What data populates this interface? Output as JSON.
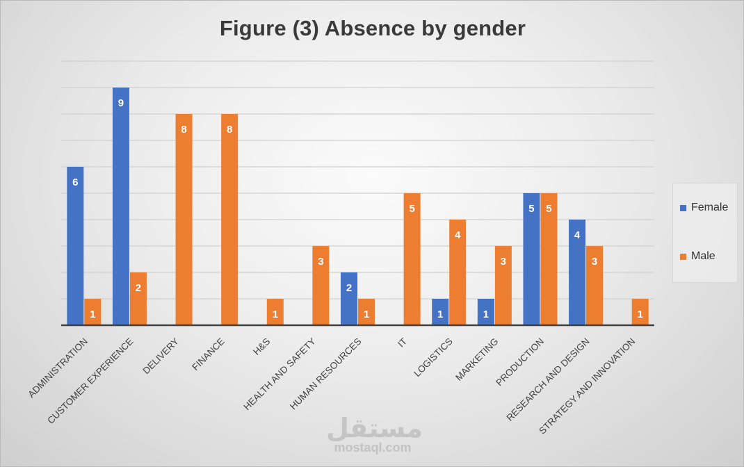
{
  "chart_data": {
    "type": "bar",
    "title": "Figure (3) Absence by gender",
    "xlabel": "",
    "ylabel": "",
    "ylim": [
      0,
      10
    ],
    "grid": true,
    "legend_position": "right",
    "categories": [
      "ADMINISTRATION",
      "CUSTOMER EXPERIENCE",
      "DELIVERY",
      "FINANCE",
      "H&S",
      "HEALTH AND SAFETY",
      "HUMAN RESOURCES",
      "IT",
      "LOGISTICS",
      "MARKETING",
      "PRODUCTION",
      "RESEARCH AND DESIGN",
      "STRATEGY AND INNOVATION"
    ],
    "series": [
      {
        "name": "Female",
        "color": "#4472c4",
        "values": [
          6,
          9,
          null,
          null,
          null,
          null,
          2,
          null,
          1,
          1,
          5,
          4,
          null
        ]
      },
      {
        "name": "Male",
        "color": "#ed7d31",
        "values": [
          1,
          2,
          8,
          8,
          1,
          3,
          1,
          5,
          4,
          3,
          5,
          3,
          1
        ]
      }
    ]
  },
  "watermark": {
    "arabic": "مستقل",
    "latin": "mostaql.com"
  }
}
